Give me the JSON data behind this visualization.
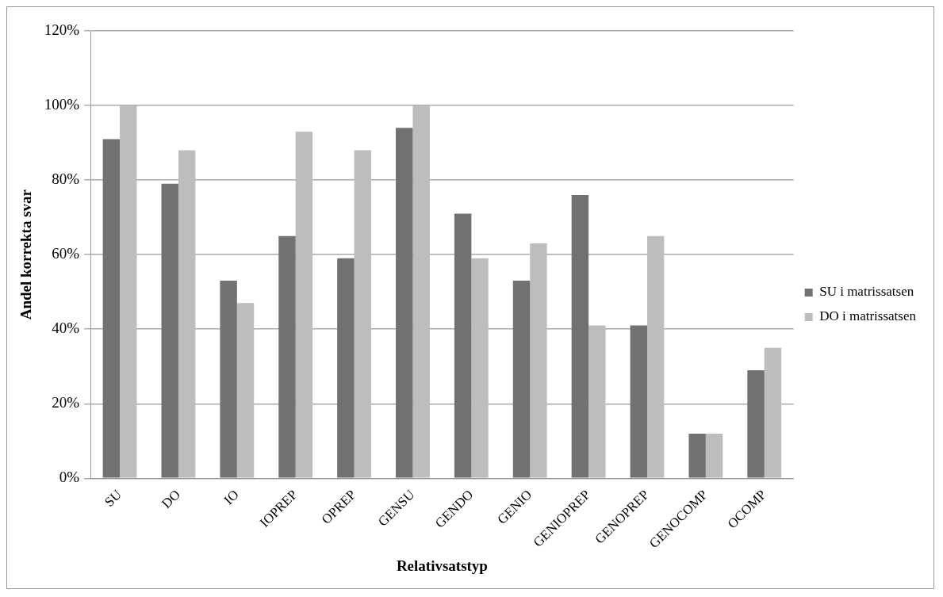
{
  "chart_data": {
    "type": "bar",
    "xlabel": "Relativsatstyp",
    "ylabel": "Andel korrekta svar",
    "categories": [
      "SU",
      "DO",
      "IO",
      "IOPREP",
      "OPREP",
      "GENSU",
      "GENDO",
      "GENIO",
      "GENIOPREP",
      "GENOPREP",
      "GENOCOMP",
      "OCOMP"
    ],
    "series": [
      {
        "name": "SU i matrissatsen",
        "color": "#717171",
        "values": [
          91,
          79,
          53,
          65,
          59,
          94,
          71,
          53,
          76,
          41,
          12,
          29
        ]
      },
      {
        "name": "DO i matrissatsen",
        "color": "#bdbdbd",
        "values": [
          100,
          88,
          47,
          93,
          88,
          100,
          59,
          63,
          41,
          65,
          12,
          35
        ]
      }
    ],
    "ylim": [
      0,
      120
    ],
    "yticks": [
      {
        "value": 0,
        "label": "0%"
      },
      {
        "value": 20,
        "label": "20%"
      },
      {
        "value": 40,
        "label": "40%"
      },
      {
        "value": 60,
        "label": "60%"
      },
      {
        "value": 80,
        "label": "80%"
      },
      {
        "value": 100,
        "label": "100%"
      },
      {
        "value": 120,
        "label": "120%"
      }
    ],
    "grid": "y",
    "legend": "right"
  }
}
